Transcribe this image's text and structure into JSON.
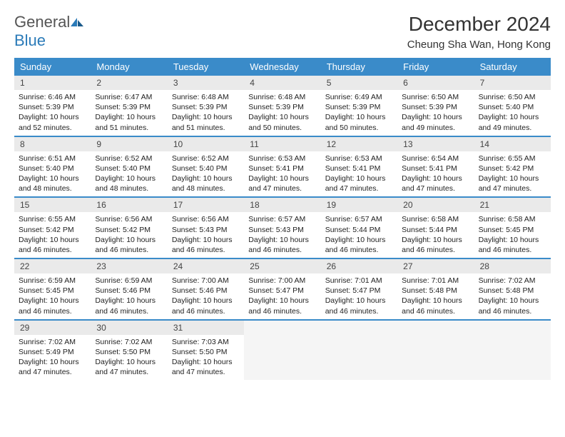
{
  "logo": {
    "text1": "General",
    "text2": "Blue"
  },
  "title": "December 2024",
  "location": "Cheung Sha Wan, Hong Kong",
  "colors": {
    "header_bg": "#3a8bc9",
    "header_text": "#ffffff",
    "daynum_bg": "#eaeaea",
    "border": "#3a8bc9",
    "logo_blue": "#2a7ab8",
    "logo_gray": "#555555"
  },
  "day_headers": [
    "Sunday",
    "Monday",
    "Tuesday",
    "Wednesday",
    "Thursday",
    "Friday",
    "Saturday"
  ],
  "weeks": [
    [
      {
        "n": "1",
        "sr": "Sunrise: 6:46 AM",
        "ss": "Sunset: 5:39 PM",
        "dl": "Daylight: 10 hours and 52 minutes."
      },
      {
        "n": "2",
        "sr": "Sunrise: 6:47 AM",
        "ss": "Sunset: 5:39 PM",
        "dl": "Daylight: 10 hours and 51 minutes."
      },
      {
        "n": "3",
        "sr": "Sunrise: 6:48 AM",
        "ss": "Sunset: 5:39 PM",
        "dl": "Daylight: 10 hours and 51 minutes."
      },
      {
        "n": "4",
        "sr": "Sunrise: 6:48 AM",
        "ss": "Sunset: 5:39 PM",
        "dl": "Daylight: 10 hours and 50 minutes."
      },
      {
        "n": "5",
        "sr": "Sunrise: 6:49 AM",
        "ss": "Sunset: 5:39 PM",
        "dl": "Daylight: 10 hours and 50 minutes."
      },
      {
        "n": "6",
        "sr": "Sunrise: 6:50 AM",
        "ss": "Sunset: 5:39 PM",
        "dl": "Daylight: 10 hours and 49 minutes."
      },
      {
        "n": "7",
        "sr": "Sunrise: 6:50 AM",
        "ss": "Sunset: 5:40 PM",
        "dl": "Daylight: 10 hours and 49 minutes."
      }
    ],
    [
      {
        "n": "8",
        "sr": "Sunrise: 6:51 AM",
        "ss": "Sunset: 5:40 PM",
        "dl": "Daylight: 10 hours and 48 minutes."
      },
      {
        "n": "9",
        "sr": "Sunrise: 6:52 AM",
        "ss": "Sunset: 5:40 PM",
        "dl": "Daylight: 10 hours and 48 minutes."
      },
      {
        "n": "10",
        "sr": "Sunrise: 6:52 AM",
        "ss": "Sunset: 5:40 PM",
        "dl": "Daylight: 10 hours and 48 minutes."
      },
      {
        "n": "11",
        "sr": "Sunrise: 6:53 AM",
        "ss": "Sunset: 5:41 PM",
        "dl": "Daylight: 10 hours and 47 minutes."
      },
      {
        "n": "12",
        "sr": "Sunrise: 6:53 AM",
        "ss": "Sunset: 5:41 PM",
        "dl": "Daylight: 10 hours and 47 minutes."
      },
      {
        "n": "13",
        "sr": "Sunrise: 6:54 AM",
        "ss": "Sunset: 5:41 PM",
        "dl": "Daylight: 10 hours and 47 minutes."
      },
      {
        "n": "14",
        "sr": "Sunrise: 6:55 AM",
        "ss": "Sunset: 5:42 PM",
        "dl": "Daylight: 10 hours and 47 minutes."
      }
    ],
    [
      {
        "n": "15",
        "sr": "Sunrise: 6:55 AM",
        "ss": "Sunset: 5:42 PM",
        "dl": "Daylight: 10 hours and 46 minutes."
      },
      {
        "n": "16",
        "sr": "Sunrise: 6:56 AM",
        "ss": "Sunset: 5:42 PM",
        "dl": "Daylight: 10 hours and 46 minutes."
      },
      {
        "n": "17",
        "sr": "Sunrise: 6:56 AM",
        "ss": "Sunset: 5:43 PM",
        "dl": "Daylight: 10 hours and 46 minutes."
      },
      {
        "n": "18",
        "sr": "Sunrise: 6:57 AM",
        "ss": "Sunset: 5:43 PM",
        "dl": "Daylight: 10 hours and 46 minutes."
      },
      {
        "n": "19",
        "sr": "Sunrise: 6:57 AM",
        "ss": "Sunset: 5:44 PM",
        "dl": "Daylight: 10 hours and 46 minutes."
      },
      {
        "n": "20",
        "sr": "Sunrise: 6:58 AM",
        "ss": "Sunset: 5:44 PM",
        "dl": "Daylight: 10 hours and 46 minutes."
      },
      {
        "n": "21",
        "sr": "Sunrise: 6:58 AM",
        "ss": "Sunset: 5:45 PM",
        "dl": "Daylight: 10 hours and 46 minutes."
      }
    ],
    [
      {
        "n": "22",
        "sr": "Sunrise: 6:59 AM",
        "ss": "Sunset: 5:45 PM",
        "dl": "Daylight: 10 hours and 46 minutes."
      },
      {
        "n": "23",
        "sr": "Sunrise: 6:59 AM",
        "ss": "Sunset: 5:46 PM",
        "dl": "Daylight: 10 hours and 46 minutes."
      },
      {
        "n": "24",
        "sr": "Sunrise: 7:00 AM",
        "ss": "Sunset: 5:46 PM",
        "dl": "Daylight: 10 hours and 46 minutes."
      },
      {
        "n": "25",
        "sr": "Sunrise: 7:00 AM",
        "ss": "Sunset: 5:47 PM",
        "dl": "Daylight: 10 hours and 46 minutes."
      },
      {
        "n": "26",
        "sr": "Sunrise: 7:01 AM",
        "ss": "Sunset: 5:47 PM",
        "dl": "Daylight: 10 hours and 46 minutes."
      },
      {
        "n": "27",
        "sr": "Sunrise: 7:01 AM",
        "ss": "Sunset: 5:48 PM",
        "dl": "Daylight: 10 hours and 46 minutes."
      },
      {
        "n": "28",
        "sr": "Sunrise: 7:02 AM",
        "ss": "Sunset: 5:48 PM",
        "dl": "Daylight: 10 hours and 46 minutes."
      }
    ],
    [
      {
        "n": "29",
        "sr": "Sunrise: 7:02 AM",
        "ss": "Sunset: 5:49 PM",
        "dl": "Daylight: 10 hours and 47 minutes."
      },
      {
        "n": "30",
        "sr": "Sunrise: 7:02 AM",
        "ss": "Sunset: 5:50 PM",
        "dl": "Daylight: 10 hours and 47 minutes."
      },
      {
        "n": "31",
        "sr": "Sunrise: 7:03 AM",
        "ss": "Sunset: 5:50 PM",
        "dl": "Daylight: 10 hours and 47 minutes."
      },
      null,
      null,
      null,
      null
    ]
  ]
}
